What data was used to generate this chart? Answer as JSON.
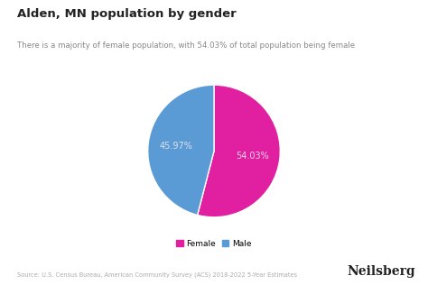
{
  "title": "Alden, MN population by gender",
  "subtitle": "There is a majority of female population, with 54.03% of total population being female",
  "slices": [
    54.03,
    45.97
  ],
  "labels": [
    "Female",
    "Male"
  ],
  "colors": [
    "#e020a0",
    "#5b9bd5"
  ],
  "pct_labels": [
    "54.03%",
    "45.97%"
  ],
  "legend_labels": [
    "Female",
    "Male"
  ],
  "source_text": "Source: U.S. Census Bureau, American Community Survey (ACS) 2018-2022 5-Year Estimates",
  "brand_text": "Neilsberg",
  "background_color": "#ffffff",
  "text_color": "#222222",
  "label_color": "#f0e8f0",
  "startangle": 90
}
